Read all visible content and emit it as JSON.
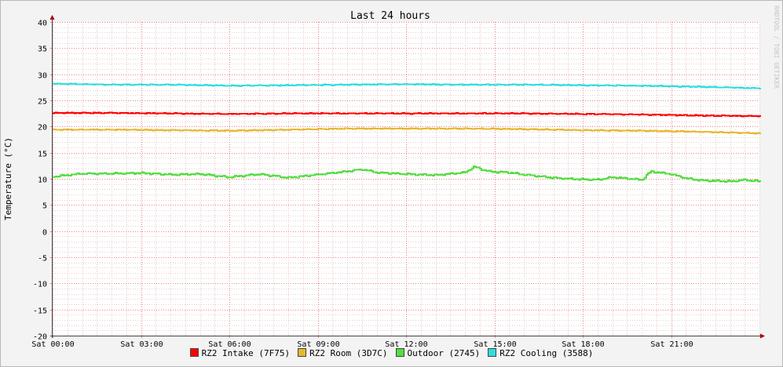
{
  "chart_data": {
    "type": "line",
    "title": "Last 24 hours",
    "ylabel": "Temperature (°C)",
    "watermark": "RRDTOOL / TOBI OETIKER",
    "ylim": [
      -20,
      40
    ],
    "yticks": [
      40,
      35,
      30,
      25,
      20,
      15,
      10,
      5,
      0,
      -5,
      -10,
      -15,
      -20
    ],
    "xlim": [
      0,
      24
    ],
    "xticks": [
      {
        "x": 0,
        "label": "Sat 00:00"
      },
      {
        "x": 3,
        "label": "Sat 03:00"
      },
      {
        "x": 6,
        "label": "Sat 06:00"
      },
      {
        "x": 9,
        "label": "Sat 09:00"
      },
      {
        "x": 12,
        "label": "Sat 12:00"
      },
      {
        "x": 15,
        "label": "Sat 15:00"
      },
      {
        "x": 18,
        "label": "Sat 18:00"
      },
      {
        "x": 21,
        "label": "Sat 21:00"
      }
    ],
    "grid": true,
    "legend_position": "bottom",
    "series": [
      {
        "name": "RZ2 Intake (7F75)",
        "color": "#ff0000",
        "x": [
          0,
          2,
          4,
          6,
          8,
          10,
          12,
          14,
          16,
          18,
          20,
          22,
          24
        ],
        "y": [
          22.6,
          22.6,
          22.5,
          22.4,
          22.5,
          22.5,
          22.5,
          22.5,
          22.5,
          22.4,
          22.3,
          22.1,
          22.0
        ]
      },
      {
        "name": "RZ2 Room (3D7C)",
        "color": "#e6b82e",
        "x": [
          0,
          2,
          4,
          6,
          8,
          10,
          12,
          14,
          16,
          18,
          20,
          22,
          24
        ],
        "y": [
          19.4,
          19.4,
          19.3,
          19.2,
          19.4,
          19.6,
          19.6,
          19.6,
          19.5,
          19.3,
          19.2,
          19.0,
          18.7
        ]
      },
      {
        "name": "Outdoor (2745)",
        "color": "#55dd44",
        "x": [
          0,
          1,
          2,
          3,
          4,
          5,
          6,
          7,
          8,
          9,
          9.8,
          10.5,
          11,
          12,
          13,
          14,
          14.3,
          14.8,
          15.5,
          16,
          17,
          17.5,
          18,
          18.5,
          19,
          20,
          20.3,
          21,
          21.5,
          22,
          23,
          23.5,
          24
        ],
        "y": [
          10.4,
          11.0,
          11.0,
          11.1,
          10.8,
          10.9,
          10.3,
          10.9,
          10.2,
          10.8,
          11.3,
          11.8,
          11.2,
          10.9,
          10.7,
          11.2,
          12.3,
          11.4,
          11.2,
          10.8,
          10.2,
          10.0,
          9.9,
          9.8,
          10.3,
          9.8,
          11.4,
          10.9,
          10.1,
          9.7,
          9.5,
          9.8,
          9.5
        ]
      },
      {
        "name": "RZ2 Cooling (3588)",
        "color": "#33dddd",
        "x": [
          0,
          2,
          4,
          6,
          8,
          10,
          12,
          14,
          16,
          18,
          20,
          22,
          24
        ],
        "y": [
          28.2,
          28.0,
          28.0,
          27.8,
          27.9,
          28.0,
          28.1,
          28.0,
          28.0,
          27.9,
          27.8,
          27.6,
          27.3
        ]
      }
    ]
  }
}
